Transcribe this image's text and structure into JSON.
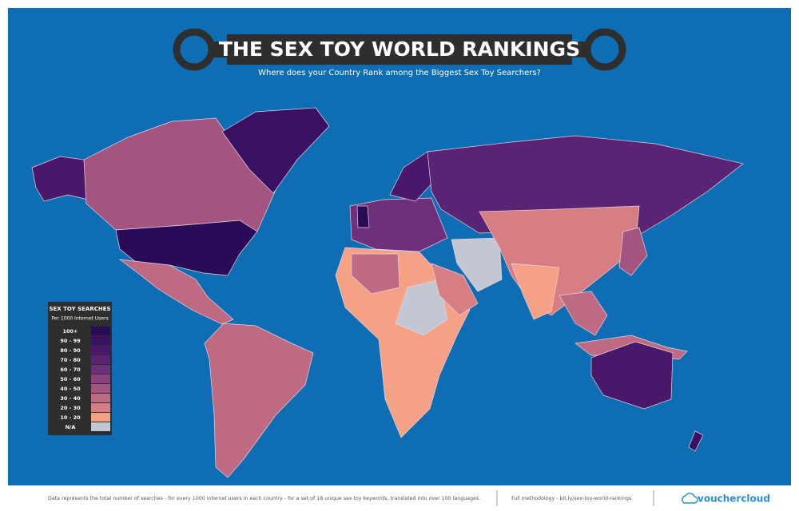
{
  "header": {
    "title": "THE SEX TOY WORLD RANKINGS",
    "subtitle": "Where does your Country Rank among the Biggest Sex Toy Searchers?"
  },
  "legend": {
    "title": "SEX TOY SEARCHES",
    "subtitle": "Per 1000 Internet Users",
    "items": [
      {
        "label": "100+",
        "color": "#2a0b57"
      },
      {
        "label": "90 - 99",
        "color": "#3a1062"
      },
      {
        "label": "80 - 90",
        "color": "#4a186b"
      },
      {
        "label": "70 - 80",
        "color": "#5b2374"
      },
      {
        "label": "60 - 70",
        "color": "#6e2f7b"
      },
      {
        "label": "50 - 60",
        "color": "#8a4380"
      },
      {
        "label": "40 - 50",
        "color": "#a35580"
      },
      {
        "label": "30 - 40",
        "color": "#bd6a82"
      },
      {
        "label": "20 - 30",
        "color": "#d77e83"
      },
      {
        "label": "10 - 20",
        "color": "#f4a186"
      },
      {
        "label": "N/A",
        "color": "#c3c7d3"
      }
    ]
  },
  "footer": {
    "note": "Data represents the total number of searches - for every 1000 internet users in each country - for a set of 18 unique sex toy keywords, translated into over 100 languages.",
    "methodology": "Full methodology - bit.ly/sex-toy-world-rankings",
    "brand": "vouchercloud"
  }
}
